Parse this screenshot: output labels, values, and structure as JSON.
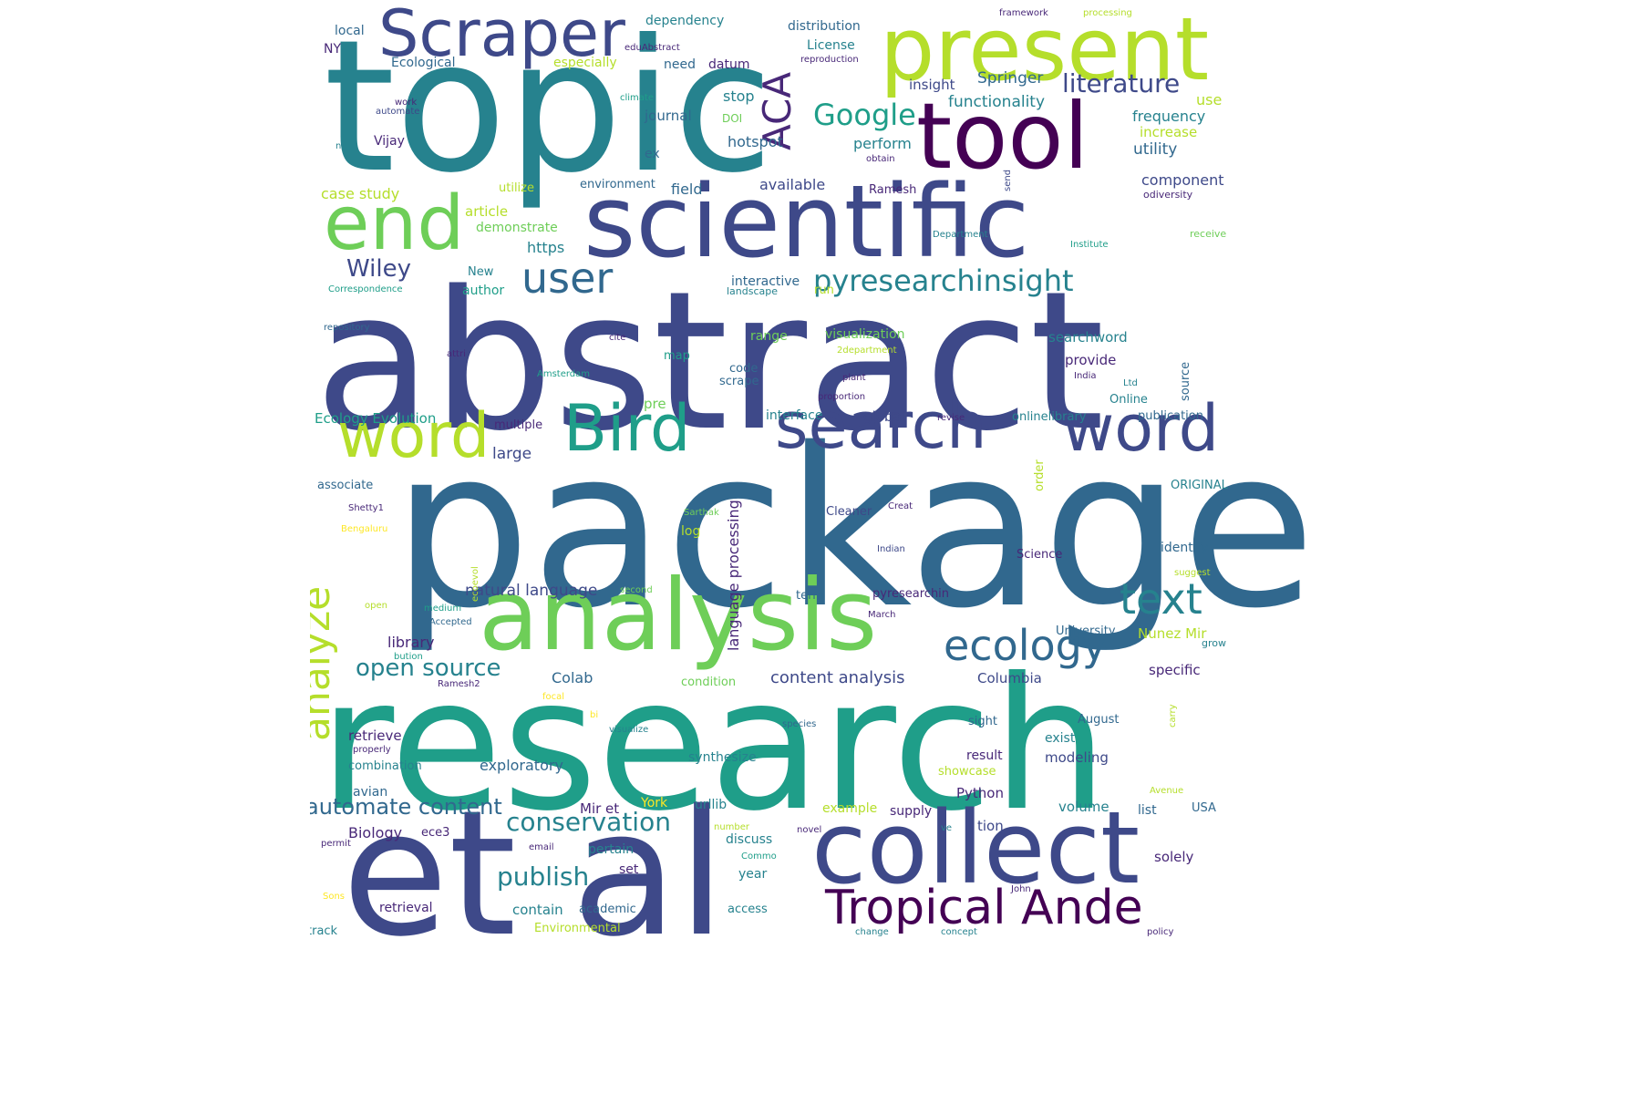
{
  "palette": {
    "deep_purple": "#440154",
    "purple": "#482878",
    "indigo": "#3e4989",
    "blue": "#31688e",
    "teal": "#26828e",
    "sea_green": "#1f9e89",
    "green": "#35b779",
    "lime": "#6ece58",
    "yellow_green": "#b5de2b",
    "yellow": "#fde725"
  },
  "words": [
    "abstract",
    "package",
    "research",
    "topic",
    "et al",
    "scientific",
    "collect",
    "present",
    "tool",
    "analysis",
    "Scraper",
    "end",
    "search",
    "word",
    "word",
    "Bird",
    "Tropical Ande",
    "ecology",
    "text",
    "user",
    "analyze",
    "ACA",
    "pyresearchinsight",
    "Google",
    "literature",
    "conservation",
    "publish",
    "automate content",
    "open source",
    "Wiley",
    "content analysis",
    "natural language",
    "language processing",
    "Springer",
    "functionality",
    "frequency",
    "utility",
    "component",
    "increase",
    "available",
    "field",
    "perform",
    "hotspot",
    "journal",
    "case study",
    "article",
    "demonstrate",
    "https",
    "utilize",
    "environment",
    "Ramesh",
    "odiversity",
    "Department",
    "Institute",
    "receive",
    "interactive",
    "run",
    "landscape",
    "Correspondence",
    "author",
    "New",
    "Vijay",
    "local",
    "NY",
    "Ecological",
    "especially",
    "need",
    "datum",
    "License",
    "distribution",
    "dependency",
    "eduAbstract",
    "framework",
    "processing",
    "reproduction",
    "stop",
    "insight",
    "use",
    "climate",
    "work",
    "automate",
    "DOI",
    "ex",
    "obtain",
    "n",
    "send",
    "range",
    "visualization",
    "2department",
    "searchword",
    "provide",
    "source",
    "repository",
    "attri",
    "cite",
    "map",
    "Amsterdam",
    "plant",
    "India",
    "Ltd",
    "code",
    "scrape",
    "proportion",
    "Online",
    "pre",
    "Ecology Evolution",
    "interface",
    "global",
    "revise",
    "onlinelibrary",
    "publication",
    "multiple",
    "order",
    "large",
    "associate",
    "ORIGINAL",
    "Shetty1",
    "Cleaner",
    "Creat",
    "Sarthak",
    "Bengaluru",
    "log",
    "Indian",
    "identify",
    "ecoevol",
    "Science",
    "suggest",
    "second",
    "term",
    "pyresearchin",
    "open",
    "medium",
    "Accepted",
    "March",
    "University",
    "grow",
    "library",
    "Nunez Mir",
    "Colab",
    "condition",
    "specific",
    "Columbia",
    "carry",
    "bution",
    "Ramesh2",
    "focal",
    "bi",
    "visualize",
    "species",
    "August",
    "sight",
    "retrieve",
    "properly",
    "exist",
    "modeling",
    "result",
    "combination",
    "exploratory",
    "synthesize",
    "showcase",
    "avian",
    "Python",
    "Avenue",
    "York",
    "urllib",
    "example",
    "supply",
    "volume",
    "list",
    "USA",
    "Mir et",
    "Biology",
    "ece3",
    "tion",
    "ve",
    "novel",
    "discuss",
    "number",
    "permit",
    "email",
    "pertain",
    "Commo",
    "solely",
    "set",
    "year",
    "John",
    "Sons",
    "retrieval",
    "contain",
    "academic",
    "access",
    "track",
    "Environmental",
    "change",
    "concept",
    "policy"
  ]
}
